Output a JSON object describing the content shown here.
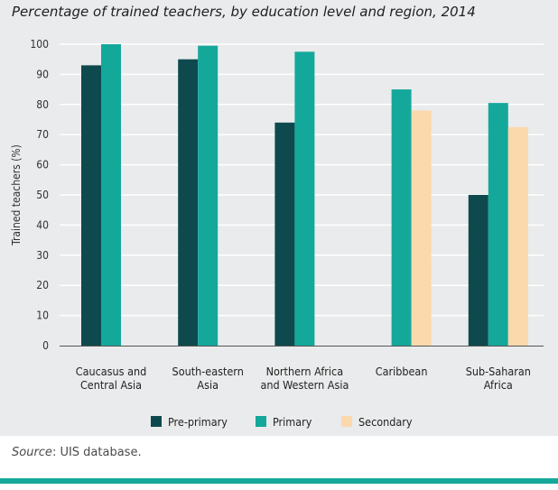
{
  "title": "Percentage of trained teachers, by education level and region, 2014",
  "source": {
    "label": "Source",
    "text": ": UIS database."
  },
  "colors": {
    "panel": "#e9ebec",
    "grid": "#ffffff",
    "accent": "#16a89a"
  },
  "chart_data": {
    "type": "bar",
    "title": "Percentage of trained teachers, by education level and region, 2014",
    "xlabel": "",
    "ylabel": "Trained teachers (%)",
    "ylim": [
      0,
      100
    ],
    "yticks": [
      0,
      10,
      20,
      30,
      40,
      50,
      60,
      70,
      80,
      90,
      100
    ],
    "grid": true,
    "legend_position": "bottom",
    "categories": [
      [
        "Caucasus and",
        "Central Asia"
      ],
      [
        "South-eastern",
        "Asia"
      ],
      [
        "Northern Africa",
        "and Western Asia"
      ],
      [
        "Caribbean"
      ],
      [
        "Sub-Saharan",
        "Africa"
      ]
    ],
    "series": [
      {
        "name": "Pre-primary",
        "color": "#0e4a4d",
        "values": [
          93,
          95,
          74,
          null,
          50
        ]
      },
      {
        "name": "Primary",
        "color": "#14a89b",
        "values": [
          100,
          99.5,
          97.5,
          85,
          80.5
        ]
      },
      {
        "name": "Secondary",
        "color": "#fcd8ad",
        "values": [
          null,
          null,
          null,
          78,
          72.5
        ]
      }
    ]
  }
}
